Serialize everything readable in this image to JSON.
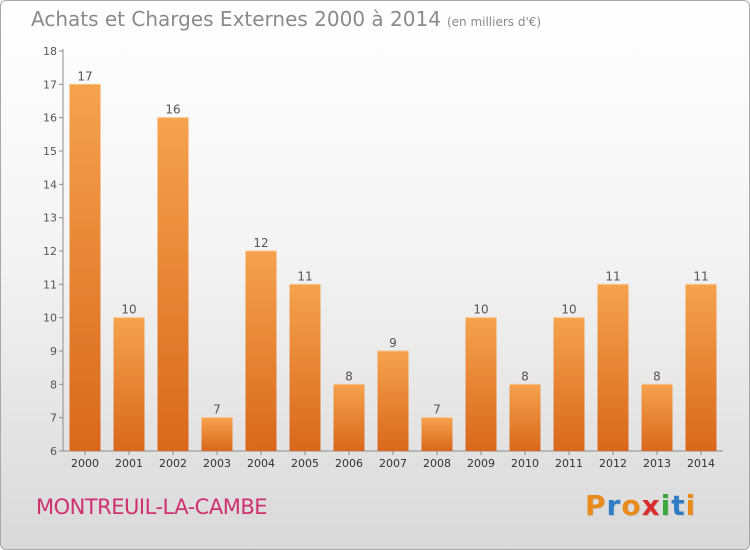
{
  "header": {
    "title": "Achats et Charges Externes 2000 à 2014",
    "unit": "(en milliers d'€)"
  },
  "footer": {
    "town": "MONTREUIL-LA-CAMBE",
    "logo": "Proxiti",
    "logo_colors": [
      "#e98a1d",
      "#2e7dc5",
      "#e98a1d",
      "#d72d2d",
      "#3aa83a",
      "#2e7dc5",
      "#e98a1d"
    ]
  },
  "chart_data": {
    "type": "bar",
    "title": "Achats et Charges Externes 2000 à 2014",
    "subtitle": "(en milliers d'€)",
    "categories": [
      "2000",
      "2001",
      "2002",
      "2003",
      "2004",
      "2005",
      "2006",
      "2007",
      "2008",
      "2009",
      "2010",
      "2011",
      "2012",
      "2013",
      "2014"
    ],
    "values": [
      17,
      10,
      16,
      7,
      12,
      11,
      8,
      9,
      7,
      10,
      8,
      10,
      11,
      8,
      11
    ],
    "ylim": [
      6,
      18
    ],
    "yticks": [
      6,
      7,
      8,
      9,
      10,
      11,
      12,
      13,
      14,
      15,
      16,
      17,
      18
    ],
    "xlabel": "",
    "ylabel": "",
    "bar_color": "#f0903a",
    "grid": false
  }
}
